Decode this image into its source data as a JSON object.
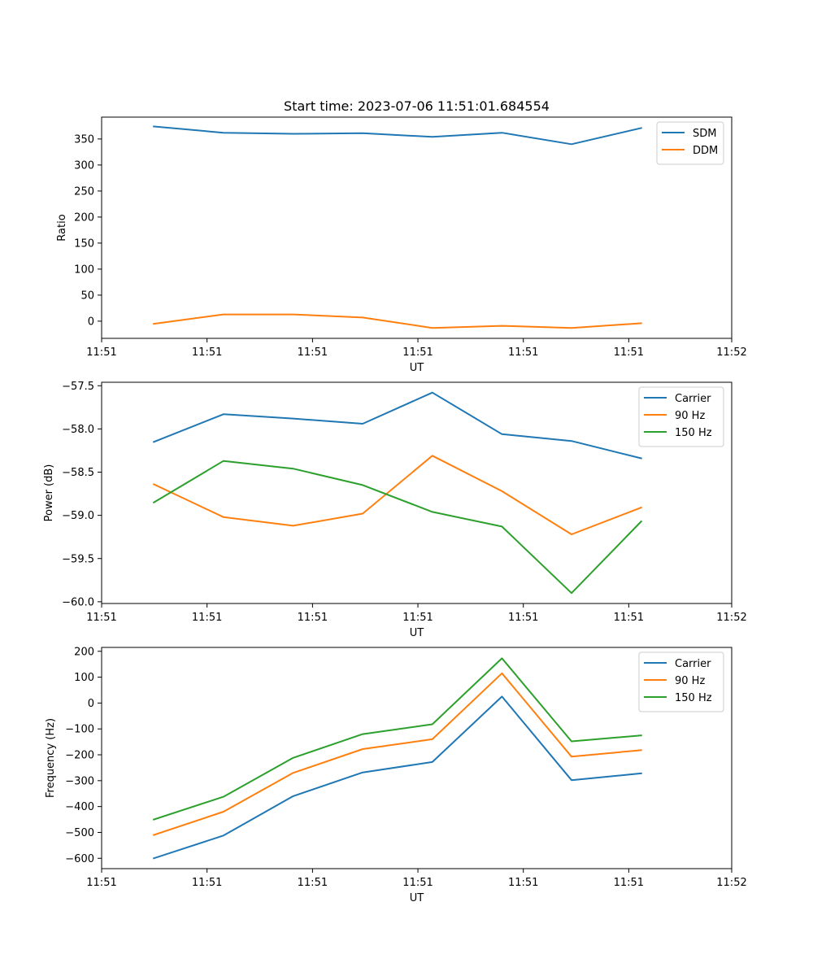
{
  "chart_data": [
    {
      "type": "line",
      "title": "Start time: 2023-07-06 11:51:01.684554",
      "xlabel": "UT",
      "ylabel": "Ratio",
      "x": [
        1,
        2,
        3,
        4,
        5,
        6,
        7,
        8
      ],
      "xlim": [
        0.25,
        9.3
      ],
      "xticks": [
        {
          "value": 0.25,
          "label": "11:51"
        },
        {
          "value": 1.764,
          "label": "11:51"
        },
        {
          "value": 3.279,
          "label": "11:51"
        },
        {
          "value": 4.793,
          "label": "11:51"
        },
        {
          "value": 6.307,
          "label": "11:51"
        },
        {
          "value": 7.821,
          "label": "11:51"
        },
        {
          "value": 9.3,
          "label": "11:52"
        }
      ],
      "ylim": [
        -33,
        392
      ],
      "yticks": [
        {
          "value": 0,
          "label": "0"
        },
        {
          "value": 50,
          "label": "50"
        },
        {
          "value": 100,
          "label": "100"
        },
        {
          "value": 150,
          "label": "150"
        },
        {
          "value": 200,
          "label": "200"
        },
        {
          "value": 250,
          "label": "250"
        },
        {
          "value": 300,
          "label": "300"
        },
        {
          "value": 350,
          "label": "350"
        }
      ],
      "legend_position": "top-right",
      "series": [
        {
          "name": "SDM",
          "color": "#1f77b4",
          "values": [
            374,
            362,
            360,
            361,
            354,
            362,
            340,
            371
          ]
        },
        {
          "name": "DDM",
          "color": "#ff7f0e",
          "values": [
            -5,
            13,
            13,
            7,
            -13,
            -9,
            -13,
            -4
          ]
        }
      ]
    },
    {
      "type": "line",
      "title": "",
      "xlabel": "UT",
      "ylabel": "Power (dB)",
      "x": [
        1,
        2,
        3,
        4,
        5,
        6,
        7,
        8
      ],
      "xlim": [
        0.25,
        9.3
      ],
      "xticks": [
        {
          "value": 0.25,
          "label": "11:51"
        },
        {
          "value": 1.764,
          "label": "11:51"
        },
        {
          "value": 3.279,
          "label": "11:51"
        },
        {
          "value": 4.793,
          "label": "11:51"
        },
        {
          "value": 6.307,
          "label": "11:51"
        },
        {
          "value": 7.821,
          "label": "11:51"
        },
        {
          "value": 9.3,
          "label": "11:52"
        }
      ],
      "ylim": [
        -60.02,
        -57.46
      ],
      "yticks": [
        {
          "value": -60.0,
          "label": "−60.0"
        },
        {
          "value": -59.5,
          "label": "−59.5"
        },
        {
          "value": -59.0,
          "label": "−59.0"
        },
        {
          "value": -58.5,
          "label": "−58.5"
        },
        {
          "value": -58.0,
          "label": "−58.0"
        },
        {
          "value": -57.5,
          "label": "−57.5"
        }
      ],
      "legend_position": "top-right",
      "series": [
        {
          "name": "Carrier",
          "color": "#1f77b4",
          "values": [
            -58.15,
            -57.83,
            -57.88,
            -57.94,
            -57.58,
            -58.06,
            -58.14,
            -58.34
          ]
        },
        {
          "name": "90 Hz",
          "color": "#ff7f0e",
          "values": [
            -58.64,
            -59.02,
            -59.12,
            -58.98,
            -58.31,
            -58.72,
            -59.22,
            -58.91
          ]
        },
        {
          "name": "150 Hz",
          "color": "#2ca02c",
          "values": [
            -58.85,
            -58.37,
            -58.46,
            -58.65,
            -58.96,
            -59.13,
            -59.9,
            -59.07
          ]
        }
      ]
    },
    {
      "type": "line",
      "title": "",
      "xlabel": "UT",
      "ylabel": "Frequency (Hz)",
      "x": [
        1,
        2,
        3,
        4,
        5,
        6,
        7,
        8
      ],
      "xlim": [
        0.25,
        9.3
      ],
      "xticks": [
        {
          "value": 0.25,
          "label": "11:51"
        },
        {
          "value": 1.764,
          "label": "11:51"
        },
        {
          "value": 3.279,
          "label": "11:51"
        },
        {
          "value": 4.793,
          "label": "11:51"
        },
        {
          "value": 6.307,
          "label": "11:51"
        },
        {
          "value": 7.821,
          "label": "11:51"
        },
        {
          "value": 9.3,
          "label": "11:52"
        }
      ],
      "ylim": [
        -640,
        215
      ],
      "yticks": [
        {
          "value": -600,
          "label": "−600"
        },
        {
          "value": -500,
          "label": "−500"
        },
        {
          "value": -400,
          "label": "−400"
        },
        {
          "value": -300,
          "label": "−300"
        },
        {
          "value": -200,
          "label": "−200"
        },
        {
          "value": -100,
          "label": "−100"
        },
        {
          "value": 0,
          "label": "0"
        },
        {
          "value": 100,
          "label": "100"
        },
        {
          "value": 200,
          "label": "200"
        }
      ],
      "legend_position": "top-right",
      "series": [
        {
          "name": "Carrier",
          "color": "#1f77b4",
          "values": [
            -600,
            -512,
            -360,
            -268,
            -228,
            25,
            -298,
            -272
          ]
        },
        {
          "name": "90 Hz",
          "color": "#ff7f0e",
          "values": [
            -510,
            -420,
            -270,
            -178,
            -140,
            115,
            -207,
            -182
          ]
        },
        {
          "name": "150 Hz",
          "color": "#2ca02c",
          "values": [
            -450,
            -362,
            -212,
            -120,
            -82,
            173,
            -148,
            -125
          ]
        }
      ]
    }
  ]
}
